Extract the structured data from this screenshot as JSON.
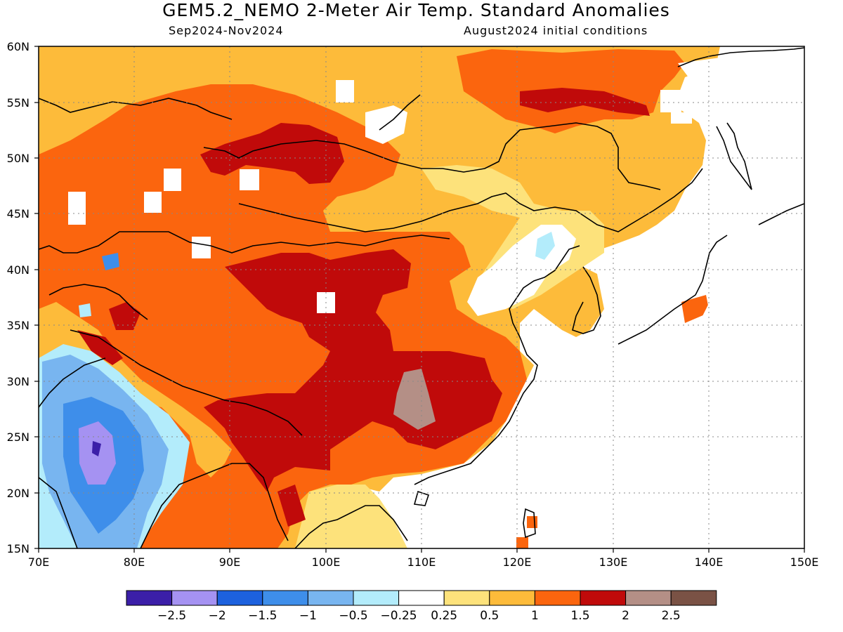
{
  "title": "GEM5.2_NEMO 2-Meter Air Temp. Standard Anomalies",
  "period": "Sep2024-Nov2024",
  "init": "August2024 initial conditions",
  "lon_labels": [
    "70E",
    "80E",
    "90E",
    "100E",
    "110E",
    "120E",
    "130E",
    "140E",
    "150E"
  ],
  "lat_labels": [
    "60N",
    "55N",
    "50N",
    "45N",
    "40N",
    "35N",
    "30N",
    "25N",
    "20N",
    "15N"
  ],
  "colorbar": {
    "colors": [
      "#3b1fa8",
      "#a592f2",
      "#1d61de",
      "#3e8eea",
      "#78b5f0",
      "#b3ecfb",
      "#ffffff",
      "#fde27b",
      "#fdbb3a",
      "#fb650e",
      "#c00a0a",
      "#b48f86",
      "#7a5245"
    ],
    "labels": [
      "-2.5",
      "-2",
      "-1.5",
      "-1",
      "-0.5",
      "-0.25",
      "0.25",
      "0.5",
      "1",
      "1.5",
      "2",
      "2.5"
    ]
  },
  "legend_levels": {
    "ocean_white": "#ffffff",
    "base_orange": "#fdbb3a",
    "dark_orange": "#fb650e",
    "red": "#c00a0a",
    "brown": "#b48f86",
    "light_yellow": "#fde27b",
    "light_blue": "#b3ecfb",
    "mid_blue": "#78b5f0",
    "blue": "#3e8eea",
    "deep_blue": "#1d61de",
    "lavender": "#a592f2",
    "purple": "#3b1fa8"
  }
}
